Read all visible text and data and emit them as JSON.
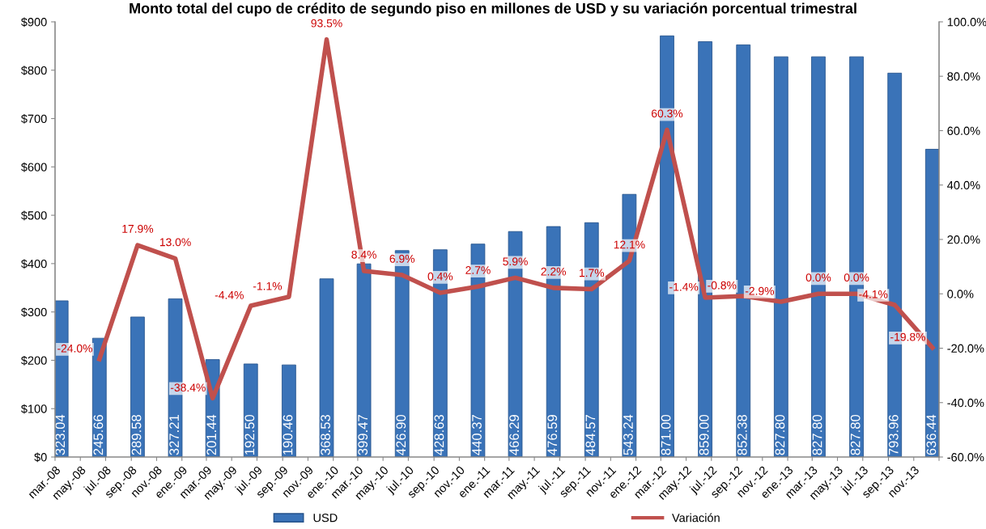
{
  "chart_data": {
    "type": "bar",
    "title": "Monto total del cupo de crédito de segundo piso en millones de USD y su variación porcentual trimestral",
    "x": [
      "2008-03-16",
      "2008-06-16",
      "2008-09-16",
      "2008-12-16",
      "2009-03-16",
      "2009-06-16",
      "2009-09-16",
      "2009-12-16",
      "2010-03-16",
      "2010-06-16",
      "2010-09-16",
      "2010-12-16",
      "2011-03-16",
      "2011-06-16",
      "2011-09-16",
      "2011-12-16",
      "2012-03-16",
      "2012-06-16",
      "2012-09-16",
      "2012-12-16",
      "2013-03-16",
      "2013-06-16",
      "2013-09-16",
      "2013-12-16"
    ],
    "series": [
      {
        "name": "USD",
        "color": "#3a73b8",
        "values": [
          323.04,
          245.66,
          289.58,
          327.21,
          201.44,
          192.5,
          190.46,
          368.53,
          399.47,
          426.9,
          428.63,
          440.37,
          466.29,
          476.59,
          484.57,
          543.24,
          871.0,
          859.0,
          852.38,
          827.8,
          827.8,
          827.8,
          793.96,
          636.44
        ],
        "value_labels": [
          "323.04",
          "245.66",
          "289.58",
          "327.21",
          "201.44",
          "192.50",
          "190.46",
          "368.53",
          "399.47",
          "426.90",
          "428.63",
          "440.37",
          "466.29",
          "476.59",
          "484.57",
          "543.24",
          "871.00",
          "859.00",
          "852.38",
          "827.80",
          "827.80",
          "827.80",
          "793.96",
          "636.44"
        ]
      },
      {
        "name": "Variación",
        "type": "line",
        "axis": "y2",
        "color": "#c0504d",
        "values": [
          null,
          -24.0,
          17.9,
          13.0,
          -38.4,
          -4.4,
          -1.1,
          93.5,
          8.4,
          6.9,
          0.4,
          2.7,
          5.9,
          2.2,
          1.7,
          12.1,
          60.3,
          -1.4,
          -0.8,
          -2.9,
          0.0,
          0.0,
          -4.1,
          -19.8
        ],
        "value_labels": [
          null,
          "-24.0%",
          "17.9%",
          "13.0%",
          "-38.4%",
          "-4.4%",
          "-1.1%",
          "93.5%",
          "8.4%",
          "6.9%",
          "0.4%",
          "2.7%",
          "5.9%",
          "2.2%",
          "1.7%",
          "12.1%",
          "60.3%",
          "-1.4%",
          "-0.8%",
          "-2.9%",
          "0.0%",
          "0.0%",
          "-4.1%",
          "-19.8%"
        ]
      }
    ],
    "xlim": [
      "2008-03",
      "2014-01"
    ],
    "xticks": [
      {
        "value": "2008-03",
        "label": "mar.-08"
      },
      {
        "value": "2008-05",
        "label": "may.-08"
      },
      {
        "value": "2008-07",
        "label": "jul.-08"
      },
      {
        "value": "2008-09",
        "label": "sep.-08"
      },
      {
        "value": "2008-11",
        "label": "nov.-08"
      },
      {
        "value": "2009-01",
        "label": "ene.-09"
      },
      {
        "value": "2009-03",
        "label": "mar.-09"
      },
      {
        "value": "2009-05",
        "label": "may.-09"
      },
      {
        "value": "2009-07",
        "label": "jul.-09"
      },
      {
        "value": "2009-09",
        "label": "sep.-09"
      },
      {
        "value": "2009-11",
        "label": "nov.-09"
      },
      {
        "value": "2010-01",
        "label": "ene.-10"
      },
      {
        "value": "2010-03",
        "label": "mar.-10"
      },
      {
        "value": "2010-05",
        "label": "may.-10"
      },
      {
        "value": "2010-07",
        "label": "jul.-10"
      },
      {
        "value": "2010-09",
        "label": "sep.-10"
      },
      {
        "value": "2010-11",
        "label": "nov.-10"
      },
      {
        "value": "2011-01",
        "label": "ene.-11"
      },
      {
        "value": "2011-03",
        "label": "mar.-11"
      },
      {
        "value": "2011-05",
        "label": "may.-11"
      },
      {
        "value": "2011-07",
        "label": "jul.-11"
      },
      {
        "value": "2011-09",
        "label": "sep.-11"
      },
      {
        "value": "2011-11",
        "label": "nov.-11"
      },
      {
        "value": "2012-01",
        "label": "ene.-12"
      },
      {
        "value": "2012-03",
        "label": "mar.-12"
      },
      {
        "value": "2012-05",
        "label": "may.-12"
      },
      {
        "value": "2012-07",
        "label": "jul.-12"
      },
      {
        "value": "2012-09",
        "label": "sep.-12"
      },
      {
        "value": "2012-11",
        "label": "nov.-12"
      },
      {
        "value": "2013-01",
        "label": "ene.-13"
      },
      {
        "value": "2013-03",
        "label": "mar.-13"
      },
      {
        "value": "2013-05",
        "label": "may.-13"
      },
      {
        "value": "2013-07",
        "label": "jul.-13"
      },
      {
        "value": "2013-09",
        "label": "sep.-13"
      },
      {
        "value": "2013-11",
        "label": "nov.-13"
      },
      {
        "value": "2014-01",
        "label": null
      }
    ],
    "ylim": [
      0,
      900
    ],
    "yticks": [
      {
        "value": 0,
        "label": "$0"
      },
      {
        "value": 100,
        "label": "$100"
      },
      {
        "value": 200,
        "label": "$200"
      },
      {
        "value": 300,
        "label": "$300"
      },
      {
        "value": 400,
        "label": "$400"
      },
      {
        "value": 500,
        "label": "$500"
      },
      {
        "value": 600,
        "label": "$600"
      },
      {
        "value": 700,
        "label": "$700"
      },
      {
        "value": 800,
        "label": "$800"
      },
      {
        "value": 900,
        "label": "$900"
      }
    ],
    "y2lim": [
      -60,
      100
    ],
    "y2ticks": [
      {
        "value": -60,
        "label": "-60.0%"
      },
      {
        "value": -40,
        "label": "-40.0%"
      },
      {
        "value": -20,
        "label": "-20.0%"
      },
      {
        "value": 0,
        "label": "0.0%"
      },
      {
        "value": 20,
        "label": "20.0%"
      },
      {
        "value": 40,
        "label": "40.0%"
      },
      {
        "value": 60,
        "label": "60.0%"
      },
      {
        "value": 80,
        "label": "80.0%"
      },
      {
        "value": 100,
        "label": "100.0%"
      }
    ],
    "grid": false,
    "legend": "bottom",
    "marker": "none",
    "line_style": "solid"
  }
}
